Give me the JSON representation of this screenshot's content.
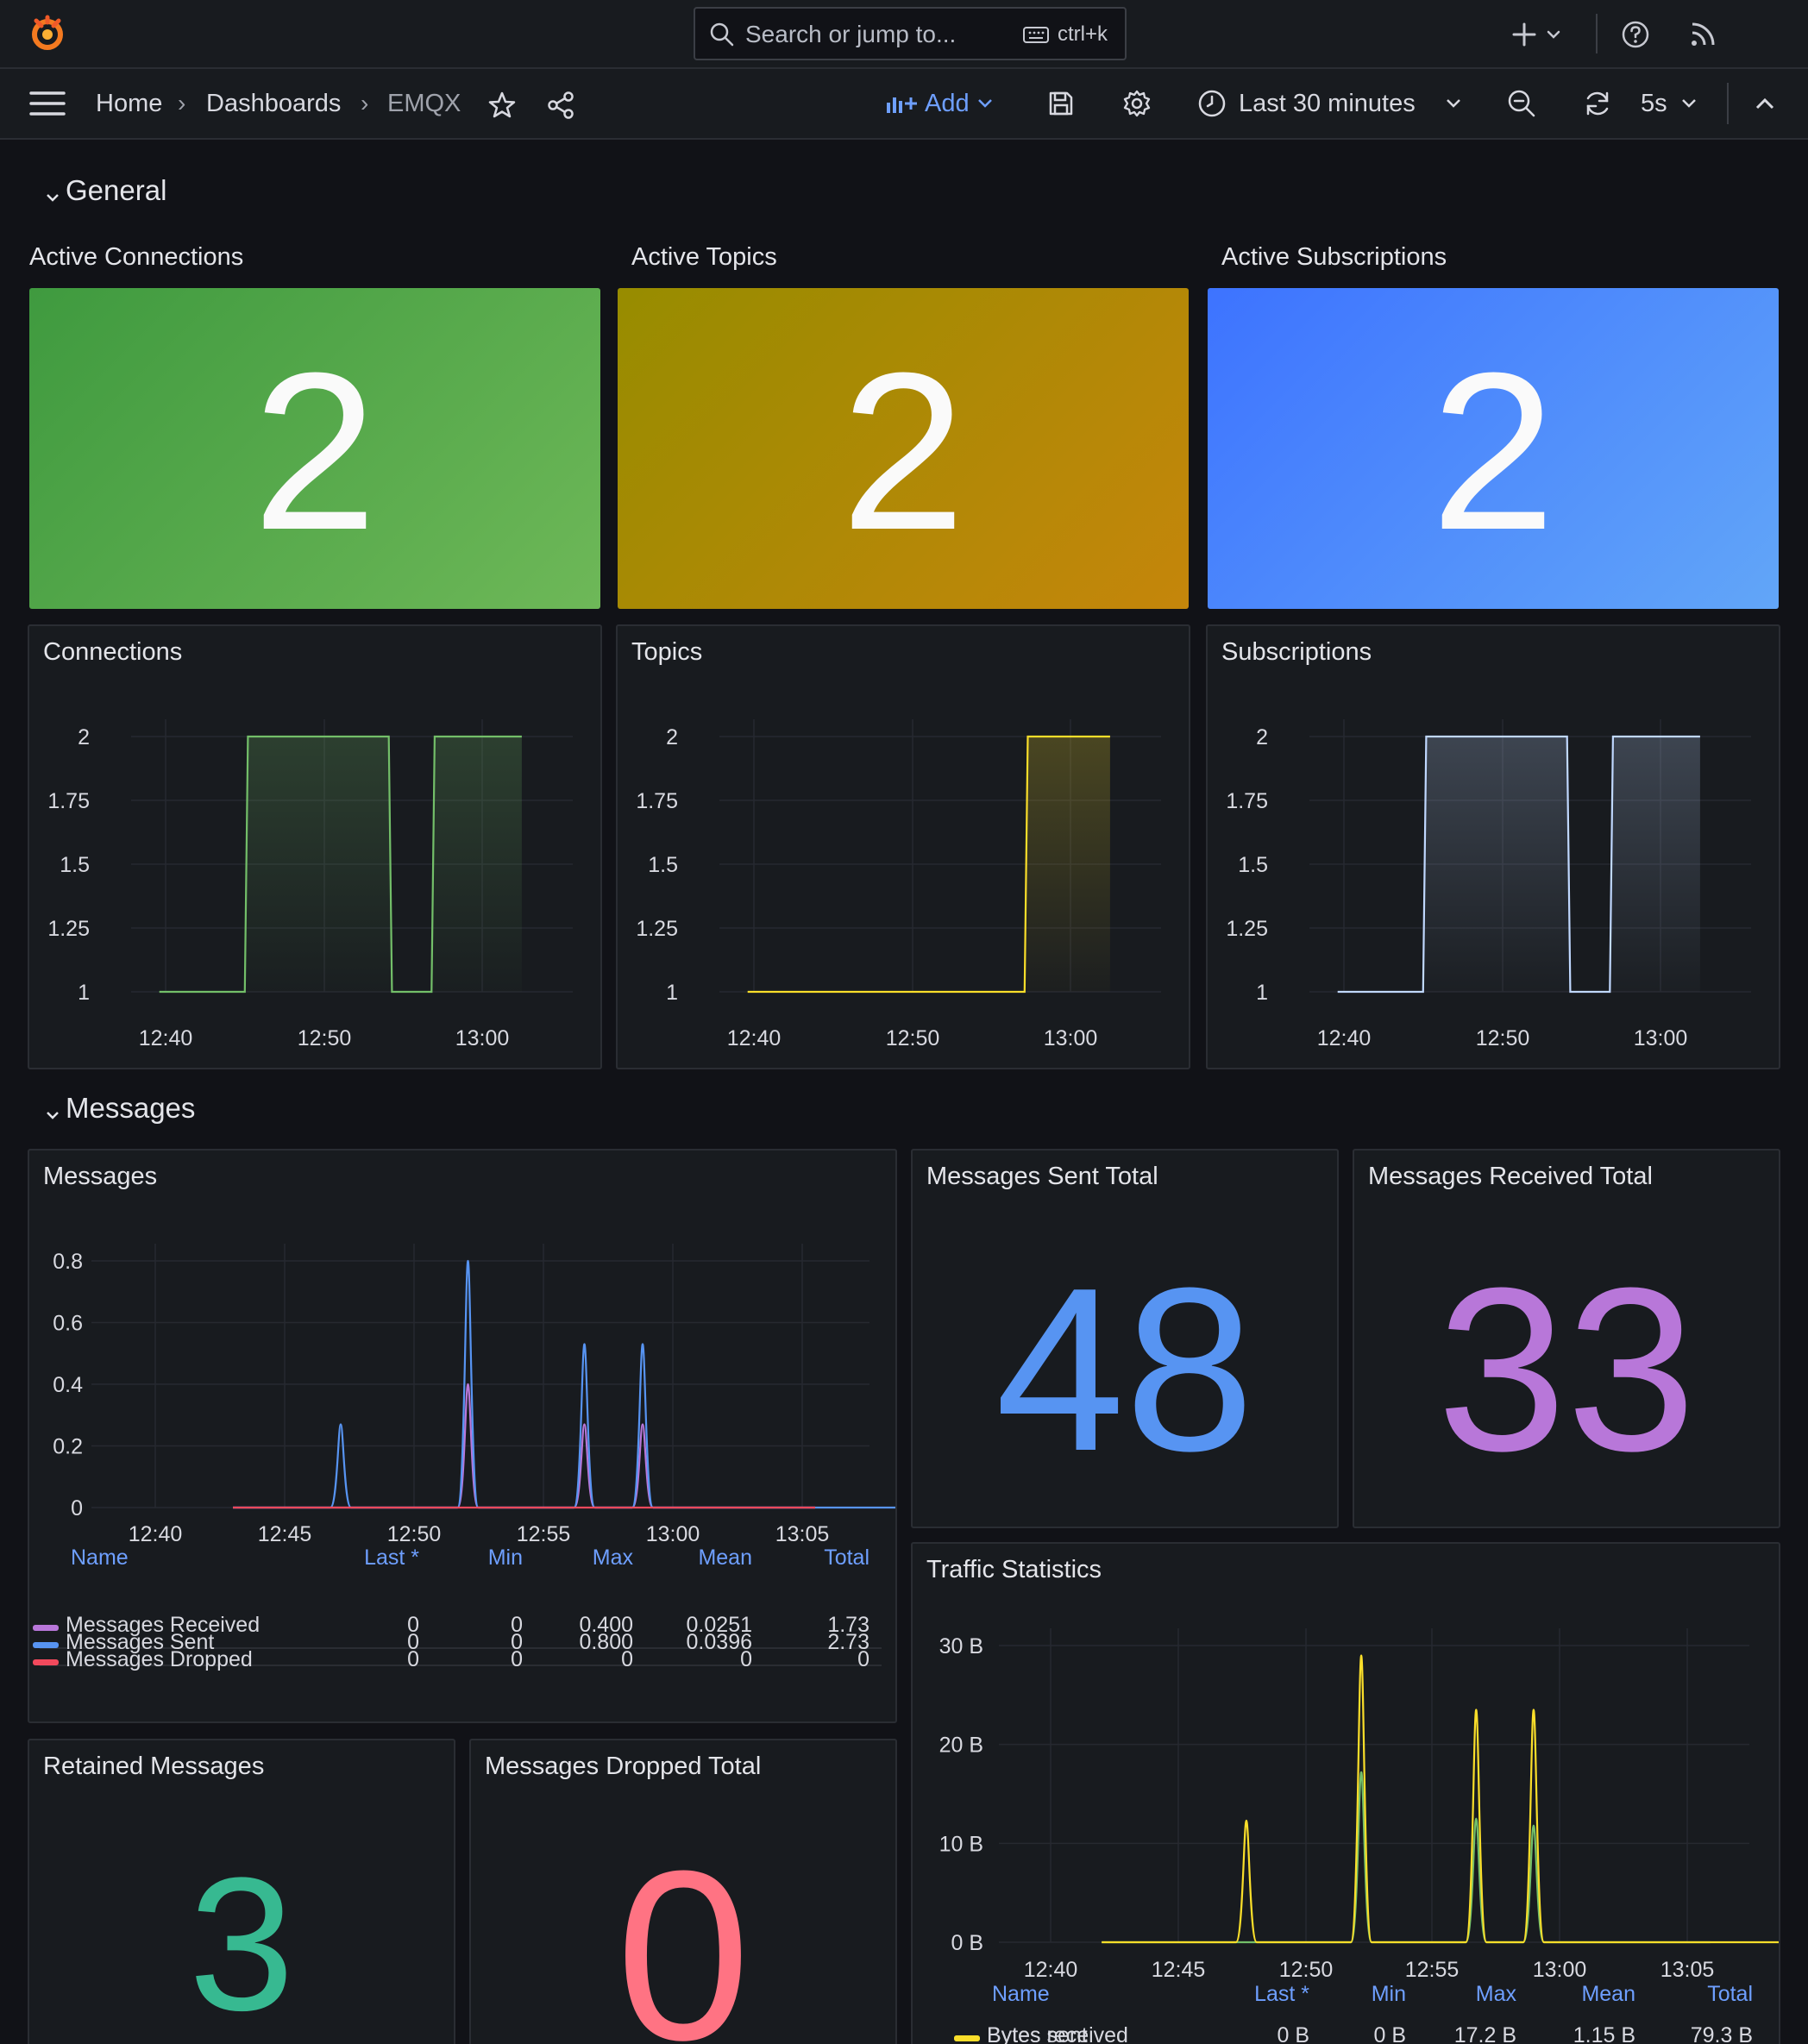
{
  "topbar": {
    "search_placeholder": "Search or jump to...",
    "shortcut": "ctrl+k"
  },
  "breadcrumbs": [
    "Home",
    "Dashboards",
    "EMQX"
  ],
  "toolbar": {
    "add_label": "Add",
    "time_range": "Last 30 minutes",
    "refresh_interval": "5s"
  },
  "sections": {
    "general": "General",
    "messages": "Messages"
  },
  "stats": {
    "active_connections": {
      "title": "Active Connections",
      "value": "2"
    },
    "active_topics": {
      "title": "Active Topics",
      "value": "2"
    },
    "active_subscriptions": {
      "title": "Active Subscriptions",
      "value": "2"
    },
    "messages_sent_total": {
      "title": "Messages Sent Total",
      "value": "48"
    },
    "messages_received_total": {
      "title": "Messages Received Total",
      "value": "33"
    },
    "retained_messages": {
      "title": "Retained Messages",
      "value": "3"
    },
    "messages_dropped_total": {
      "title": "Messages Dropped Total",
      "value": "0"
    }
  },
  "colors": {
    "green": "#73bf69",
    "yellow": "#fade2a",
    "orange_grad": "#c8860a",
    "blue": "#5794f2",
    "purple": "#b877d9",
    "red": "#f2495c",
    "teal": "#37b991",
    "pink": "#ff7383",
    "light_blue": "#c0d8ff"
  },
  "chart_data": [
    {
      "id": "connections",
      "type": "line",
      "title": "Connections",
      "x_ticks": [
        "12:40",
        "12:50",
        "13:00"
      ],
      "y_ticks": [
        "1",
        "1.25",
        "1.5",
        "1.75",
        "2"
      ],
      "ylim": [
        1,
        2
      ],
      "xlim": [
        0,
        23
      ],
      "series": [
        {
          "name": "Connections",
          "color": "#73bf69",
          "x": [
            4.6,
            10,
            10.2,
            19.1,
            19.3,
            21.8,
            22,
            27.5
          ],
          "y": [
            1,
            1,
            2,
            2,
            1,
            1,
            2,
            2
          ]
        }
      ]
    },
    {
      "id": "topics",
      "type": "line",
      "title": "Topics",
      "x_ticks": [
        "12:40",
        "12:50",
        "13:00"
      ],
      "y_ticks": [
        "1",
        "1.25",
        "1.5",
        "1.75",
        "2"
      ],
      "ylim": [
        1,
        2
      ],
      "series": [
        {
          "name": "Topics",
          "color": "#fade2a",
          "x": [
            4.6,
            22.1,
            22.3,
            27.5
          ],
          "y": [
            1,
            1,
            2,
            2
          ]
        }
      ]
    },
    {
      "id": "subscriptions",
      "type": "line",
      "title": "Subscriptions",
      "x_ticks": [
        "12:40",
        "12:50",
        "13:00"
      ],
      "y_ticks": [
        "1",
        "1.25",
        "1.5",
        "1.75",
        "2"
      ],
      "ylim": [
        1,
        2
      ],
      "series": [
        {
          "name": "Subscriptions",
          "color": "#c0d8ff",
          "x": [
            4.6,
            10,
            10.2,
            19.1,
            19.3,
            21.8,
            22,
            27.5
          ],
          "y": [
            1,
            1,
            2,
            2,
            1,
            1,
            2,
            2
          ]
        }
      ]
    },
    {
      "id": "messages",
      "type": "line",
      "title": "Messages",
      "x_ticks": [
        "12:40",
        "12:45",
        "12:50",
        "12:55",
        "13:00",
        "13:05"
      ],
      "y_ticks": [
        "0",
        "0.2",
        "0.4",
        "0.6",
        "0.8"
      ],
      "ylim": [
        0,
        0.8
      ],
      "legend_headers": [
        "Name",
        "Last *",
        "Min",
        "Max",
        "Mean",
        "Total"
      ],
      "series": [
        {
          "name": "Messages Received",
          "color": "#b877d9",
          "stats": [
            "0",
            "0",
            "0.400",
            "0.0251",
            "1.73"
          ],
          "peaks": [
            [
              10.25,
              0.4
            ],
            [
              12.95,
              0.27
            ],
            [
              14.3,
              0.27
            ]
          ]
        },
        {
          "name": "Messages Sent",
          "color": "#5794f2",
          "stats": [
            "0",
            "0",
            "0.800",
            "0.0396",
            "2.73"
          ],
          "peaks": [
            [
              7.3,
              0.27
            ],
            [
              10.25,
              0.8
            ],
            [
              12.95,
              0.53
            ],
            [
              14.3,
              0.53
            ],
            [
              21,
              0.27
            ]
          ]
        },
        {
          "name": "Messages Dropped",
          "color": "#f2495c",
          "stats": [
            "0",
            "0",
            "0",
            "0",
            "0"
          ],
          "peaks": []
        }
      ]
    },
    {
      "id": "traffic",
      "type": "line",
      "title": "Traffic Statistics",
      "x_ticks": [
        "12:40",
        "12:45",
        "12:50",
        "12:55",
        "13:00",
        "13:05"
      ],
      "y_ticks": [
        "0 B",
        "10 B",
        "20 B",
        "30 B"
      ],
      "ylim": [
        0,
        30
      ],
      "legend_headers": [
        "Name",
        "Last *",
        "Min",
        "Max",
        "Mean",
        "Total"
      ],
      "series": [
        {
          "name": "Bytes received",
          "color": "#73bf69",
          "stats": [
            "0 B",
            "0 B",
            "17.2 B",
            "1.15 B",
            "79.3 B"
          ],
          "peaks": [
            [
              10.3,
              17.2
            ],
            [
              13.0,
              12.5
            ],
            [
              14.35,
              11.8
            ]
          ]
        },
        {
          "name": "Bytes sent",
          "color": "#fade2a",
          "stats": [],
          "peaks": [
            [
              7.6,
              12.3
            ],
            [
              10.3,
              29
            ],
            [
              13.0,
              23.5
            ],
            [
              14.35,
              23.5
            ],
            [
              21.1,
              11.8
            ]
          ]
        }
      ]
    }
  ]
}
